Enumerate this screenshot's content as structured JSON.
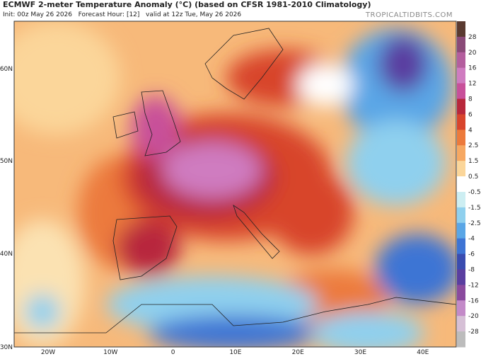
{
  "header": {
    "title": "ECMWF 2-meter Temperature Anomaly (°C) (based on CFSR 1981-2010 Climatology)",
    "subtitle": "Init: 00z May 26 2026   Forecast Hour: [12]   valid at 12z Tue, May 26 2026",
    "watermark": "TROPICALTIDBITS.COM"
  },
  "map": {
    "lat_labels": [
      "60N",
      "50N",
      "40N",
      "30N"
    ],
    "lon_labels": [
      "20W",
      "10W",
      "0",
      "10E",
      "20E",
      "30E",
      "40E"
    ]
  },
  "colorbar": {
    "labels": [
      "28",
      "20",
      "16",
      "12",
      "8",
      "6",
      "4",
      "2.5",
      "1.5",
      "0.5",
      "-0.5",
      "-1.5",
      "-2.5",
      "-4",
      "-6",
      "-8",
      "-12",
      "-16",
      "-20",
      "-28"
    ],
    "colors": [
      "#5a3a30",
      "#8a4a78",
      "#b45e9e",
      "#cf7cc0",
      "#c8509a",
      "#b8283c",
      "#d8452c",
      "#ec7a3c",
      "#f6a862",
      "#fbd69a",
      "#ffffff",
      "#cdeef2",
      "#8fd0ee",
      "#5aa6e6",
      "#3e74d4",
      "#3a4cb0",
      "#5a3ea0",
      "#8a4a9e",
      "#c38ac8",
      "#d6c0d6",
      "#bcbcbc"
    ]
  }
}
